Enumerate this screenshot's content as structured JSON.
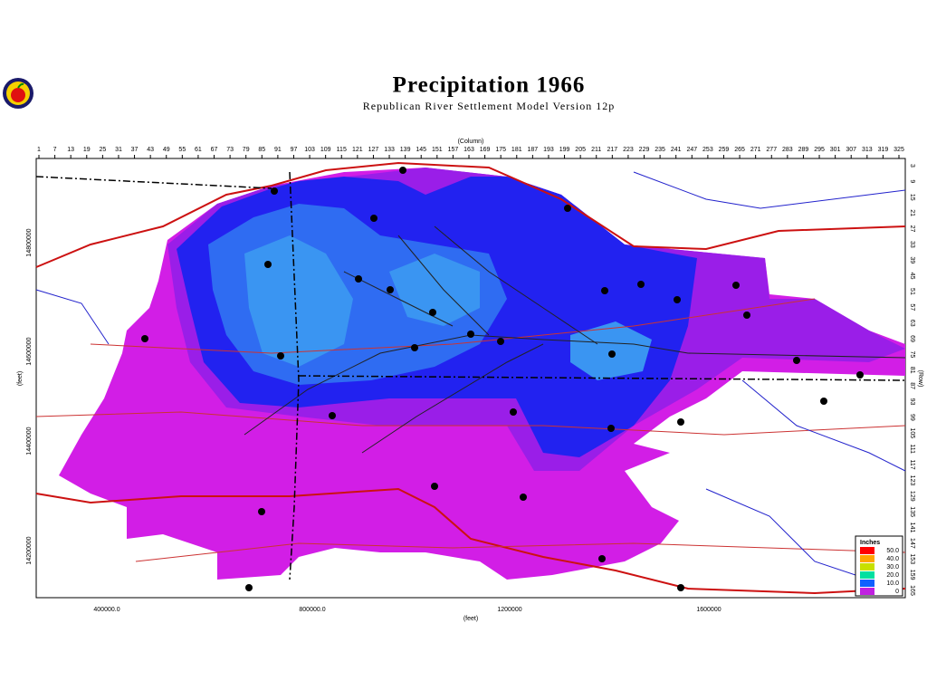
{
  "header": {
    "title": "Precipitation 1966",
    "subtitle": "Republican River Settlement Model Version 12p"
  },
  "axes": {
    "column_label": "(Column)",
    "row_label": "(Row)",
    "x_label": "(feet)",
    "y_label": "(feet)",
    "columns": [
      1,
      7,
      13,
      19,
      25,
      31,
      37,
      43,
      49,
      55,
      61,
      67,
      73,
      79,
      85,
      91,
      97,
      103,
      109,
      115,
      121,
      127,
      133,
      139,
      145,
      151,
      157,
      163,
      169,
      175,
      181,
      187,
      193,
      199,
      205,
      211,
      217,
      223,
      229,
      235,
      241,
      247,
      253,
      259,
      265,
      271,
      277,
      283,
      289,
      295,
      301,
      307,
      313,
      319,
      325
    ],
    "rows": [
      3,
      9,
      15,
      21,
      27,
      33,
      39,
      45,
      51,
      57,
      63,
      69,
      75,
      81,
      87,
      93,
      99,
      105,
      111,
      117,
      123,
      129,
      135,
      141,
      147,
      153,
      159,
      165
    ],
    "x_ticks": [
      "400000.0",
      "800000.0",
      "1200000",
      "1600000"
    ],
    "y_ticks": [
      "14800000",
      "14600000",
      "14400000",
      "14200000"
    ]
  },
  "legend": {
    "title": "Inches",
    "labels": [
      "50.0",
      "40.0",
      "30.0",
      "20.0",
      "10.0",
      "0"
    ]
  }
}
